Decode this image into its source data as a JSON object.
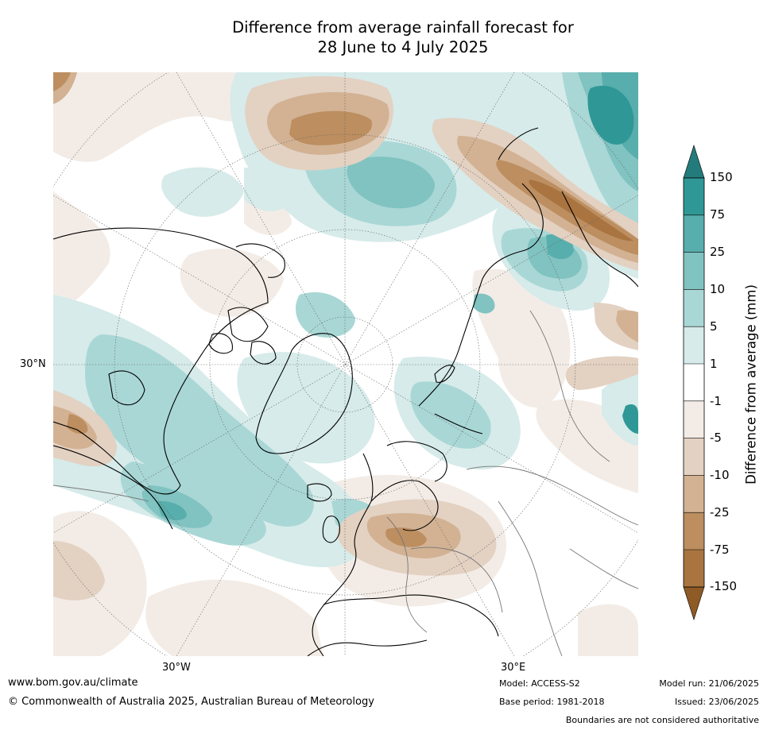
{
  "title_line1": "Difference from average rainfall forecast for",
  "title_line2": "28 June to 4 July 2025",
  "axis_labels": {
    "lat": "30°N",
    "lon_w": "30°W",
    "lon_e": "30°E"
  },
  "colorbar": {
    "title": "Difference from average (mm)",
    "ticks": [
      "150",
      "75",
      "25",
      "10",
      "5",
      "1",
      "-1",
      "-5",
      "-10",
      "-25",
      "-75",
      "-150"
    ],
    "colors": {
      "c150_up": "#247b7b",
      "c75_150": "#2f9896",
      "c25_75": "#58aeac",
      "c10_25": "#80c3c1",
      "c5_10": "#a9d7d6",
      "c1_5": "#d6ebea",
      "c_neutral": "#ffffff",
      "cm5_m1": "#f3ece6",
      "cm10_m5": "#e3d1c2",
      "cm25_m10": "#d2b293",
      "cm75_m25": "#bc8e60",
      "cm150_m75": "#a97440",
      "cm150_down": "#8e5a25"
    }
  },
  "footer": {
    "url": "www.bom.gov.au/climate",
    "copyright": "© Commonwealth of Australia 2025, Australian Bureau of Meteorology",
    "model": "Model: ACCESS-S2",
    "base_period": "Base period: 1981-2018",
    "model_run": "Model run: 21/06/2025",
    "issued": "Issued: 23/06/2025",
    "boundaries": "Boundaries are not considered authoritative"
  }
}
